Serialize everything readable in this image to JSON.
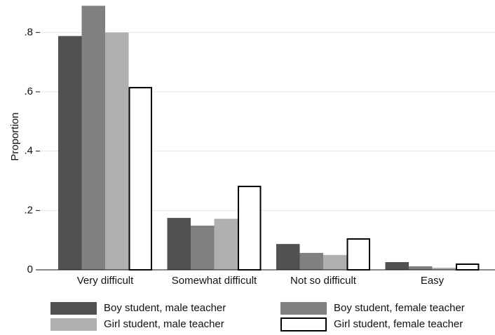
{
  "chart_data": {
    "type": "bar",
    "ylabel": "Proportion",
    "categories": [
      "Very difficult",
      "Somewhat difficult",
      "Not so difficult",
      "Easy"
    ],
    "series": [
      {
        "name": "Boy student, male teacher",
        "color": "#515151",
        "values": [
          0.788,
          0.175,
          0.087,
          0.026
        ]
      },
      {
        "name": "Boy student, female teacher",
        "color": "#808080",
        "values": [
          0.89,
          0.149,
          0.057,
          0.012
        ]
      },
      {
        "name": "Girl student, male teacher",
        "color": "#b0b0b0",
        "values": [
          0.8,
          0.172,
          0.05,
          0.007
        ]
      },
      {
        "name": "Girl student, female teacher",
        "color": "#ffffff",
        "edgecolor": "#000000",
        "values": [
          0.614,
          0.281,
          0.104,
          0.019
        ]
      }
    ],
    "ylim": [
      0,
      0.9
    ],
    "yticks": [
      0,
      {
        "value": 0.2,
        "label": ".2"
      },
      {
        "value": 0.4,
        "label": ".4"
      },
      {
        "value": 0.6,
        "label": ".6"
      },
      {
        "value": 0.8,
        "label": ".8"
      }
    ],
    "grid": true,
    "legend": "bottom"
  }
}
